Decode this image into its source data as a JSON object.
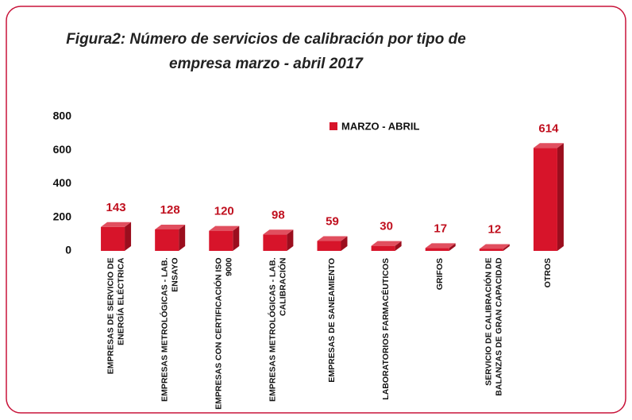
{
  "chart_data": {
    "type": "bar",
    "title": "Figura2: Número de servicios de calibración por tipo de empresa marzo - abril  2017",
    "categories": [
      "EMPRESAS DE SERVICIO DE ENERGÍA ELÉCTRICA",
      "EMPRESAS METROLÓGICAS - LAB. ENSAYO",
      "EMPRESAS CON CERTIFICACIÓN ISO 9000",
      "EMPRESAS METROLÓGICAS - LAB. CALIBRACIÓN",
      "EMPRESAS DE SANEAMIENTO",
      "LABORATORIOS FARMACÉUTICOS",
      "GRIFOS",
      "SERVICIO DE CALIBRACIÓN DE BALANZAS DE GRAN CAPACIDAD",
      "OTROS"
    ],
    "series": [
      {
        "name": "MARZO - ABRIL",
        "color": "#d7142a",
        "values": [
          143,
          128,
          120,
          98,
          59,
          30,
          17,
          12,
          614
        ]
      }
    ],
    "ylim": [
      0,
      800
    ],
    "yticks": [
      0,
      200,
      400,
      600,
      800
    ],
    "grid": false,
    "legend": "top"
  }
}
